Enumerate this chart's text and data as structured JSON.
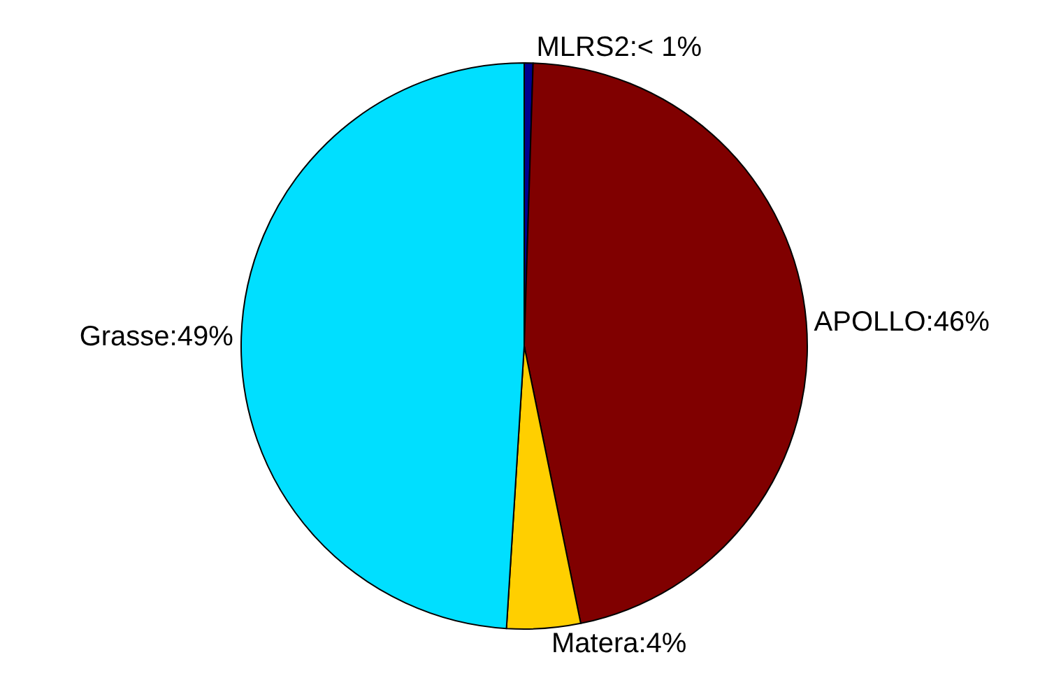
{
  "chart_data": {
    "type": "pie",
    "categories": [
      "MLRS2",
      "APOLLO",
      "Matera",
      "Grasse"
    ],
    "values": [
      0.5,
      46.3,
      4.2,
      49.0
    ],
    "value_labels": [
      "< 1%",
      "46%",
      "4%",
      "49%"
    ],
    "colors": [
      "#00008f",
      "#800000",
      "#ffcf00",
      "#00dfff"
    ],
    "legend": false
  }
}
